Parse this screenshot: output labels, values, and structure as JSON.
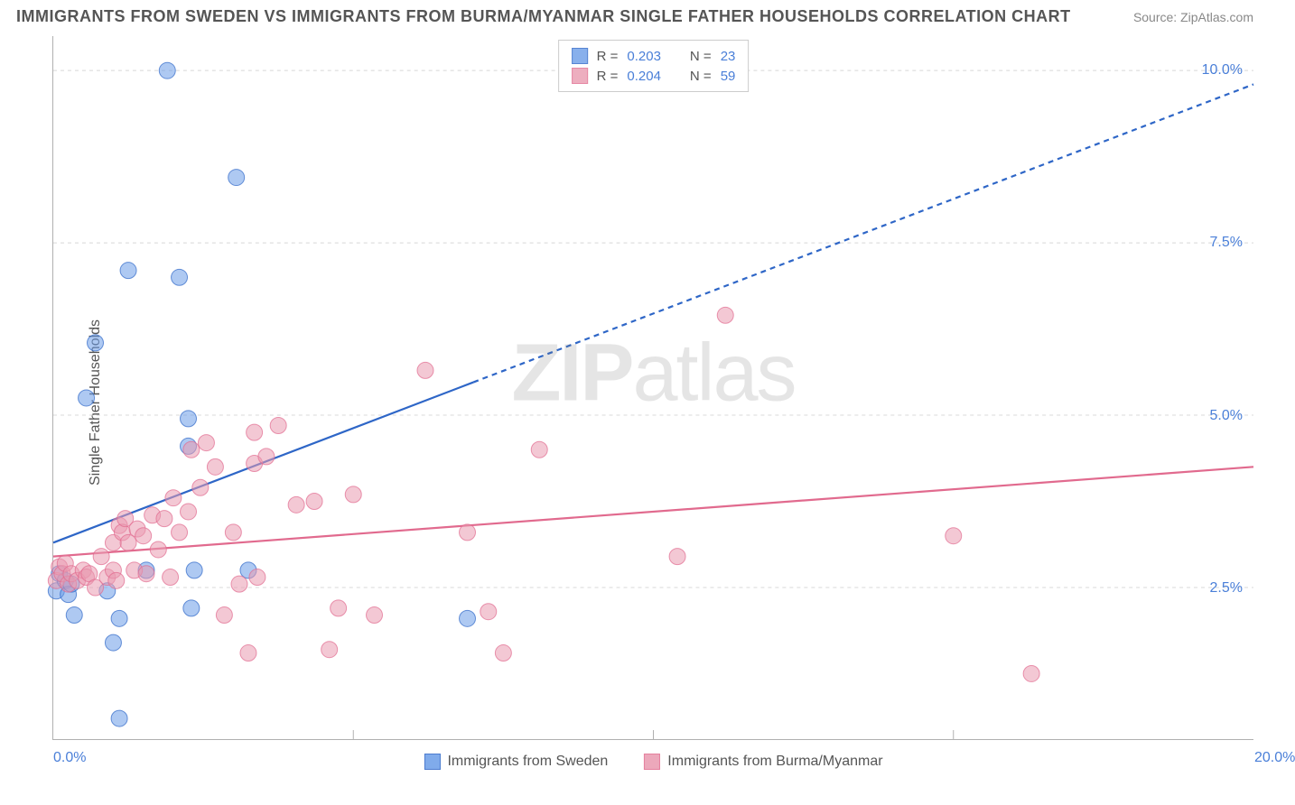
{
  "title": "IMMIGRANTS FROM SWEDEN VS IMMIGRANTS FROM BURMA/MYANMAR SINGLE FATHER HOUSEHOLDS CORRELATION CHART",
  "source_label": "Source: ZipAtlas.com",
  "ylabel": "Single Father Households",
  "watermark_bold": "ZIP",
  "watermark_light": "atlas",
  "chart": {
    "type": "scatter",
    "xlim": [
      0,
      20
    ],
    "ylim_top": 10.5,
    "ylim_bottom": 0.3,
    "xticks": [
      {
        "v": 0,
        "l": "0.0%"
      },
      {
        "v": 20,
        "l": "20.0%"
      }
    ],
    "xtick_minor": [
      5,
      10,
      15
    ],
    "yticks": [
      {
        "v": 2.5,
        "l": "2.5%"
      },
      {
        "v": 5.0,
        "l": "5.0%"
      },
      {
        "v": 7.5,
        "l": "7.5%"
      },
      {
        "v": 10.0,
        "l": "10.0%"
      }
    ],
    "grid_color": "#d8d8d8",
    "background_color": "#ffffff",
    "marker_radius": 9,
    "marker_opacity": 0.55,
    "line_width": 2.2,
    "series": [
      {
        "name": "Immigrants from Sweden",
        "color": "#6b9de8",
        "line_color": "#2e66c7",
        "R": "0.203",
        "N": "23",
        "trend": {
          "x1": 0,
          "y1": 3.15,
          "x2": 20,
          "y2": 9.8,
          "solid_until_x": 7.0
        },
        "points": [
          [
            0.05,
            2.45
          ],
          [
            0.1,
            2.7
          ],
          [
            0.2,
            2.6
          ],
          [
            0.25,
            2.4
          ],
          [
            0.3,
            2.55
          ],
          [
            0.35,
            2.1
          ],
          [
            0.55,
            5.25
          ],
          [
            0.7,
            6.05
          ],
          [
            0.9,
            2.45
          ],
          [
            1.0,
            1.7
          ],
          [
            1.1,
            2.05
          ],
          [
            1.1,
            0.6
          ],
          [
            1.25,
            7.1
          ],
          [
            1.55,
            2.75
          ],
          [
            1.9,
            10.0
          ],
          [
            2.1,
            7.0
          ],
          [
            2.25,
            4.55
          ],
          [
            2.25,
            4.95
          ],
          [
            2.3,
            2.2
          ],
          [
            2.35,
            2.75
          ],
          [
            3.05,
            8.45
          ],
          [
            3.25,
            2.75
          ],
          [
            6.9,
            2.05
          ]
        ]
      },
      {
        "name": "Immigrants from Burma/Myanmar",
        "color": "#e99ab0",
        "line_color": "#e16a8e",
        "R": "0.204",
        "N": "59",
        "trend": {
          "x1": 0,
          "y1": 2.95,
          "x2": 20,
          "y2": 4.25,
          "solid_until_x": 20
        },
        "points": [
          [
            0.05,
            2.6
          ],
          [
            0.1,
            2.8
          ],
          [
            0.15,
            2.7
          ],
          [
            0.2,
            2.85
          ],
          [
            0.25,
            2.55
          ],
          [
            0.3,
            2.7
          ],
          [
            0.4,
            2.6
          ],
          [
            0.5,
            2.75
          ],
          [
            0.55,
            2.65
          ],
          [
            0.6,
            2.7
          ],
          [
            0.7,
            2.5
          ],
          [
            0.8,
            2.95
          ],
          [
            0.9,
            2.65
          ],
          [
            1.0,
            2.75
          ],
          [
            1.0,
            3.15
          ],
          [
            1.05,
            2.6
          ],
          [
            1.1,
            3.4
          ],
          [
            1.15,
            3.3
          ],
          [
            1.2,
            3.5
          ],
          [
            1.25,
            3.15
          ],
          [
            1.35,
            2.75
          ],
          [
            1.4,
            3.35
          ],
          [
            1.5,
            3.25
          ],
          [
            1.55,
            2.7
          ],
          [
            1.65,
            3.55
          ],
          [
            1.75,
            3.05
          ],
          [
            1.85,
            3.5
          ],
          [
            1.95,
            2.65
          ],
          [
            2.0,
            3.8
          ],
          [
            2.1,
            3.3
          ],
          [
            2.25,
            3.6
          ],
          [
            2.3,
            4.5
          ],
          [
            2.45,
            3.95
          ],
          [
            2.55,
            4.6
          ],
          [
            2.7,
            4.25
          ],
          [
            2.85,
            2.1
          ],
          [
            3.0,
            3.3
          ],
          [
            3.1,
            2.55
          ],
          [
            3.25,
            1.55
          ],
          [
            3.35,
            4.75
          ],
          [
            3.35,
            4.3
          ],
          [
            3.4,
            2.65
          ],
          [
            3.55,
            4.4
          ],
          [
            3.75,
            4.85
          ],
          [
            4.05,
            3.7
          ],
          [
            4.35,
            3.75
          ],
          [
            4.6,
            1.6
          ],
          [
            4.75,
            2.2
          ],
          [
            5.0,
            3.85
          ],
          [
            5.35,
            2.1
          ],
          [
            6.2,
            5.65
          ],
          [
            6.9,
            3.3
          ],
          [
            7.25,
            2.15
          ],
          [
            7.5,
            1.55
          ],
          [
            8.1,
            4.5
          ],
          [
            10.4,
            2.95
          ],
          [
            11.2,
            6.45
          ],
          [
            15.0,
            3.25
          ],
          [
            16.3,
            1.25
          ]
        ]
      }
    ]
  },
  "legend_top_label_R": "R =",
  "legend_top_label_N": "N ="
}
